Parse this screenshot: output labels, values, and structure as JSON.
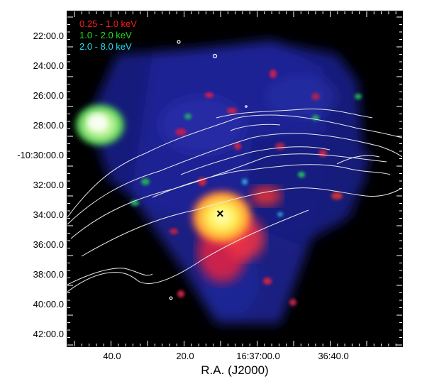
{
  "legend": [
    {
      "label": "0.25 - 1.0 keV",
      "color": "#ff1a1a"
    },
    {
      "label": "1.0 - 2.0 keV",
      "color": "#22dd22"
    },
    {
      "label": "2.0 - 8.0 keV",
      "color": "#22e0ee"
    }
  ],
  "y_ticks": [
    "22:00.0",
    "24:00.0",
    "26:00.0",
    "28:00.0",
    "-10:30:00.0",
    "32:00.0",
    "34:00.0",
    "36:00.0",
    "38:00.0",
    "40:00.0",
    "42:00.0"
  ],
  "x_ticks": [
    "40.0",
    "20.0",
    "16:37:00.0",
    "36:40.0"
  ],
  "x_axis_label": "R.A. (J2000)",
  "marker": "×"
}
